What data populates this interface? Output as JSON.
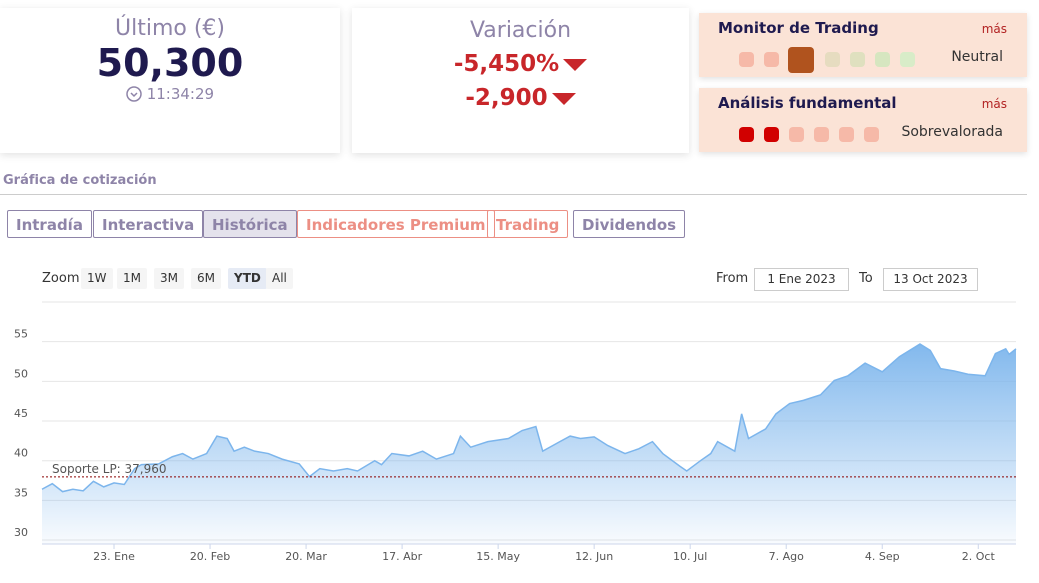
{
  "last": {
    "label": "Último (€)",
    "value": "50,300",
    "time": "11:34:29"
  },
  "variation": {
    "label": "Variación",
    "percent": "-5,450%",
    "absolute": "-2,900"
  },
  "trading_monitor": {
    "title": "Monitor de Trading",
    "more": "más",
    "status": "Neutral"
  },
  "fundamental": {
    "title": "Análisis fundamental",
    "more": "más",
    "status": "Sobrevalorada"
  },
  "section_title": "Gráfica de cotización",
  "tabs": [
    "Intradía",
    "Interactiva",
    "Histórica",
    "Indicadores Premium",
    "Trading",
    "Dividendos"
  ],
  "zoom": {
    "label": "Zoom",
    "buttons": [
      "1W",
      "1M",
      "3M",
      "6M",
      "YTD",
      "All"
    ]
  },
  "range": {
    "from_label": "From",
    "from": "1 Ene 2023",
    "to_label": "To",
    "to": "13 Oct 2023"
  },
  "chart_data": {
    "type": "area",
    "color": "#7cb5ec",
    "x": [
      2,
      5,
      8,
      11,
      14,
      17,
      20,
      23,
      26,
      29,
      31,
      36,
      40,
      43,
      46,
      50,
      53,
      56,
      58,
      61,
      64,
      68,
      72,
      77,
      80,
      83,
      87,
      91,
      94,
      99,
      101,
      104,
      109,
      113,
      117,
      122,
      124,
      127,
      132,
      138,
      142,
      146,
      148,
      153,
      156,
      159,
      163,
      167,
      172,
      176,
      180,
      183,
      188,
      190,
      194,
      197,
      199,
      204,
      206,
      208,
      213,
      216,
      220,
      224,
      229,
      233,
      237,
      242,
      247,
      252,
      258,
      261,
      264,
      268,
      272,
      277,
      280,
      283,
      284,
      286
    ],
    "values": [
      36.4,
      37.1,
      36.1,
      36.4,
      36.2,
      37.4,
      36.7,
      37.2,
      37.0,
      39.0,
      39.5,
      39.6,
      40.5,
      40.9,
      40.2,
      40.9,
      43.1,
      42.8,
      41.2,
      41.7,
      41.2,
      40.9,
      40.2,
      39.6,
      38.0,
      39.0,
      38.7,
      39.0,
      38.7,
      40.0,
      39.5,
      40.9,
      40.6,
      41.2,
      40.2,
      40.9,
      43.1,
      41.7,
      42.4,
      42.8,
      43.8,
      44.3,
      41.2,
      42.4,
      43.1,
      42.8,
      43.0,
      41.9,
      40.9,
      41.5,
      42.4,
      40.9,
      39.3,
      38.7,
      40.0,
      40.9,
      42.4,
      41.2,
      45.9,
      42.8,
      44.0,
      45.9,
      47.2,
      47.6,
      48.3,
      50.1,
      50.7,
      52.3,
      51.2,
      53.1,
      54.7,
      53.9,
      51.6,
      51.3,
      50.9,
      50.7,
      53.5,
      54.1,
      53.4,
      54.1
    ],
    "xlim": [
      2,
      286
    ],
    "ylim": [
      29.5,
      60
    ],
    "yticks": [
      30,
      35,
      40,
      45,
      50,
      55
    ],
    "xticks": [
      {
        "value": 23,
        "label": "23. Ene"
      },
      {
        "value": 51,
        "label": "20. Feb"
      },
      {
        "value": 79,
        "label": "20. Mar"
      },
      {
        "value": 107,
        "label": "17. Abr"
      },
      {
        "value": 135,
        "label": "15. May"
      },
      {
        "value": 163,
        "label": "12. Jun"
      },
      {
        "value": 191,
        "label": "10. Jul"
      },
      {
        "value": 219,
        "label": "7. Ago"
      },
      {
        "value": 247,
        "label": "4. Sep"
      },
      {
        "value": 275,
        "label": "2. Oct"
      }
    ],
    "grid": true,
    "support": {
      "value": 37.96,
      "label": "Soporte LP: 37,960"
    }
  }
}
